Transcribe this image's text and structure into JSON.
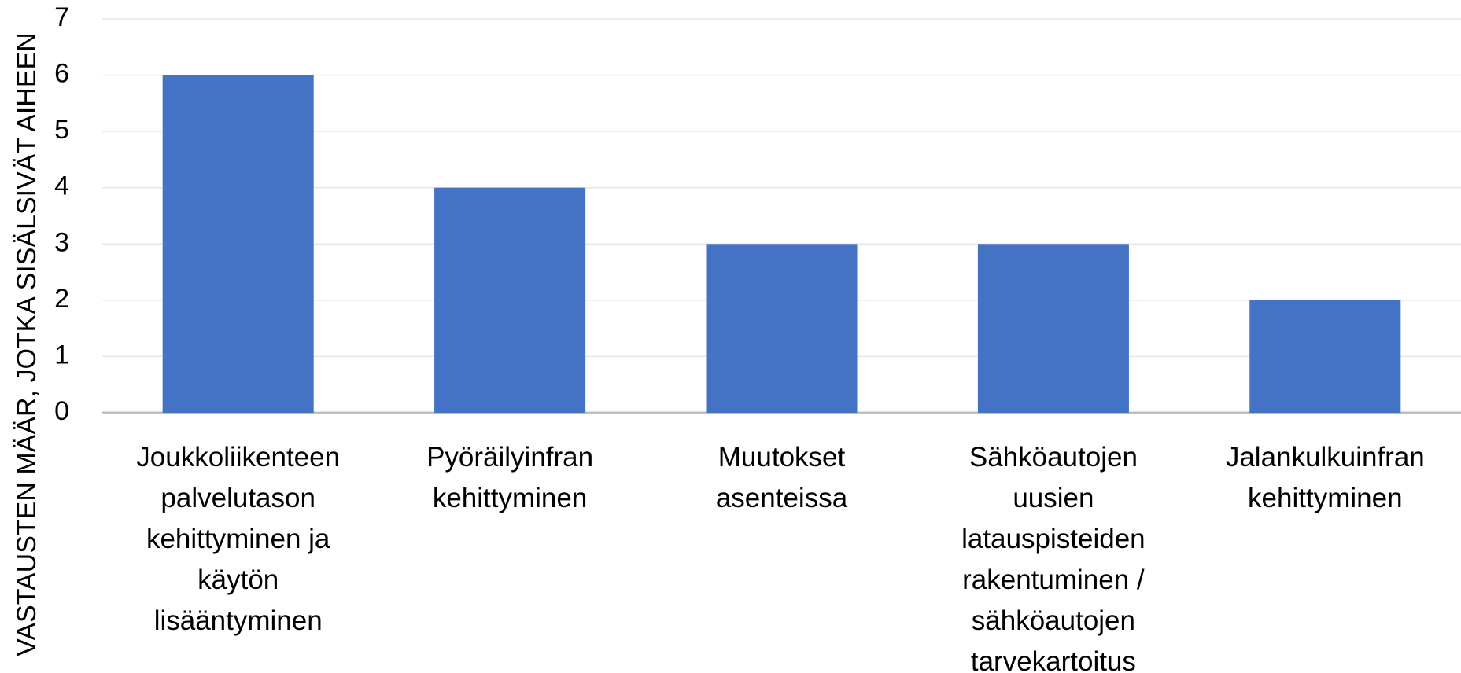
{
  "chart_data": {
    "type": "bar",
    "y_axis_label": "VASTAUSTEN MÄÄR, JOTKA SISÄLSIVÄT AIHEEN",
    "categories": [
      "Joukkoliikenteen palvelutason kehittyminen ja käytön lisääntyminen",
      "Pyöräilyinfran kehittyminen",
      "Muutokset asenteissa",
      "Sähköautojen uusien latauspisteiden rakentuminen / sähköautojen tarvekartoitus",
      "Jalankulkuinfran kehittyminen"
    ],
    "values": [
      6,
      4,
      3,
      3,
      2
    ],
    "color": "#4472c4",
    "ylim": [
      0,
      7
    ],
    "yticks": [
      0,
      1,
      2,
      3,
      4,
      5,
      6,
      7
    ],
    "grid": true
  }
}
